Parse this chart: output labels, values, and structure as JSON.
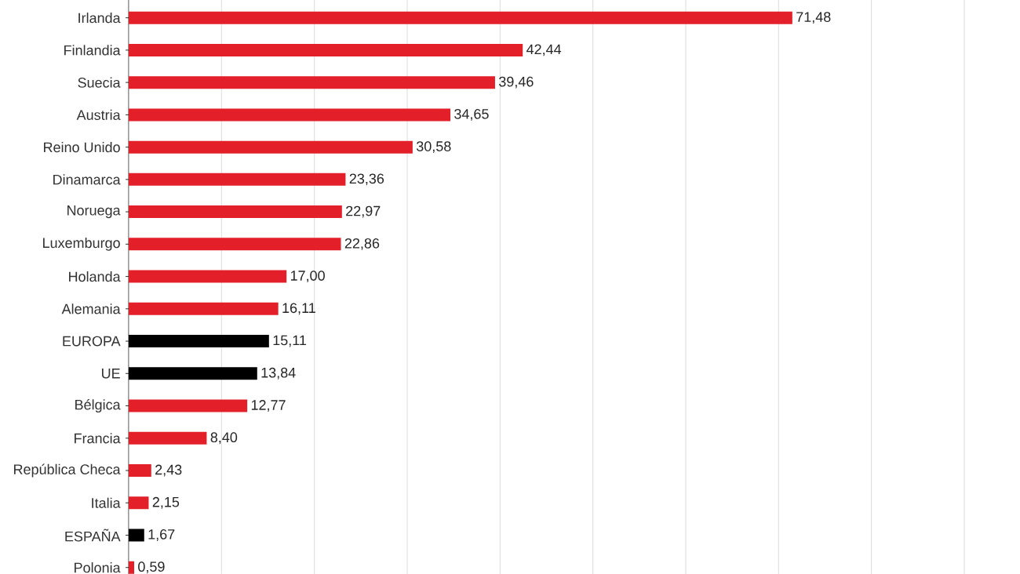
{
  "chart_data": {
    "type": "bar",
    "orientation": "horizontal",
    "categories": [
      "Irlanda",
      "Finlandia",
      "Suecia",
      "Austria",
      "Reino Unido",
      "Dinamarca",
      "Noruega",
      "Luxemburgo",
      "Holanda",
      "Alemania",
      "EUROPA",
      "UE",
      "Bélgica",
      "Francia",
      "República Checa",
      "Italia",
      "ESPAÑA",
      "Polonia"
    ],
    "values": [
      71.48,
      42.44,
      39.46,
      34.65,
      30.58,
      23.36,
      22.97,
      22.86,
      17.0,
      16.11,
      15.11,
      13.84,
      12.77,
      8.4,
      2.43,
      2.15,
      1.67,
      0.59
    ],
    "value_labels": [
      "71,48",
      "42,44",
      "39,46",
      "34,65",
      "30,58",
      "23,36",
      "22,97",
      "22,86",
      "17,00",
      "16,11",
      "15,11",
      "13,84",
      "12,77",
      "8,40",
      "2,43",
      "2,15",
      "1,67",
      "0,59"
    ],
    "colors": [
      "#e3202a",
      "#e3202a",
      "#e3202a",
      "#e3202a",
      "#e3202a",
      "#e3202a",
      "#e3202a",
      "#e3202a",
      "#e3202a",
      "#e3202a",
      "#000000",
      "#000000",
      "#e3202a",
      "#e3202a",
      "#e3202a",
      "#e3202a",
      "#000000",
      "#e3202a"
    ],
    "xticks": [
      {
        "value": 10,
        "label": null
      },
      {
        "value": 20,
        "label": null
      },
      {
        "value": 30,
        "label": null
      },
      {
        "value": 40,
        "label": null
      },
      {
        "value": 50,
        "label": null
      },
      {
        "value": 60,
        "label": null
      },
      {
        "value": 70,
        "label": null
      },
      {
        "value": 80,
        "label": null
      },
      {
        "value": 90,
        "label": null
      }
    ],
    "grid": "x",
    "tick_labels": "y"
  }
}
